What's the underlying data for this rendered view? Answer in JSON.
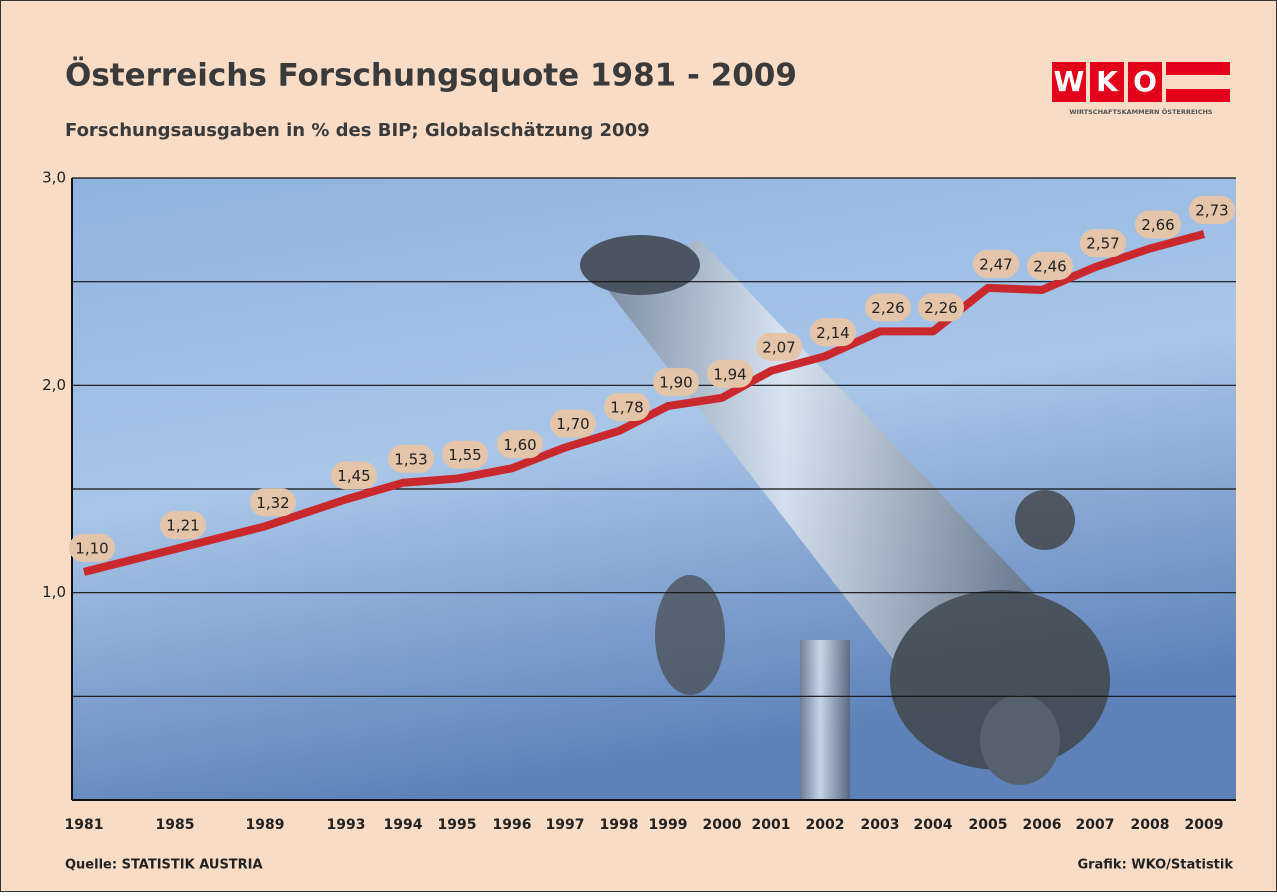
{
  "chart_data": {
    "type": "line",
    "title": "Österreichs Forschungsquote 1981 - 2009",
    "subtitle": "Forschungsausgaben in % des BIP; Globalschätzung 2009",
    "logo": {
      "letters": [
        "W",
        "K",
        "O"
      ],
      "caption": "WIRTSCHAFTSKAMMERN ÖSTERREICHS"
    },
    "source": "Quelle: STATISTIK AUSTRIA",
    "credit": "Grafik: WKO/Statistik",
    "categories": [
      "1981",
      "1985",
      "1989",
      "1993",
      "1994",
      "1995",
      "1996",
      "1997",
      "1998",
      "1999",
      "2000",
      "2001",
      "2002",
      "2003",
      "2004",
      "2005",
      "2006",
      "2007",
      "2008",
      "2009"
    ],
    "values": [
      1.1,
      1.21,
      1.32,
      1.45,
      1.53,
      1.55,
      1.6,
      1.7,
      1.78,
      1.9,
      1.94,
      2.07,
      2.14,
      2.26,
      2.26,
      2.47,
      2.46,
      2.57,
      2.66,
      2.73
    ],
    "value_labels": [
      "1,10",
      "1,21",
      "1,32",
      "1,45",
      "1,53",
      "1,55",
      "1,60",
      "1,70",
      "1,78",
      "1,90",
      "1,94",
      "2,07",
      "2,14",
      "2,26",
      "2,26",
      "2,47",
      "2,46",
      "2,57",
      "2,66",
      "2,73"
    ],
    "color": "#c9282d",
    "ylim": [
      0,
      3
    ],
    "yticks": [
      {
        "value": 1,
        "label": "1,0"
      },
      {
        "value": 2,
        "label": "2,0"
      },
      {
        "value": 3,
        "label": "3,0"
      }
    ],
    "minor_gridlines": [
      0.5,
      1.5,
      2.5
    ],
    "grid": true
  }
}
